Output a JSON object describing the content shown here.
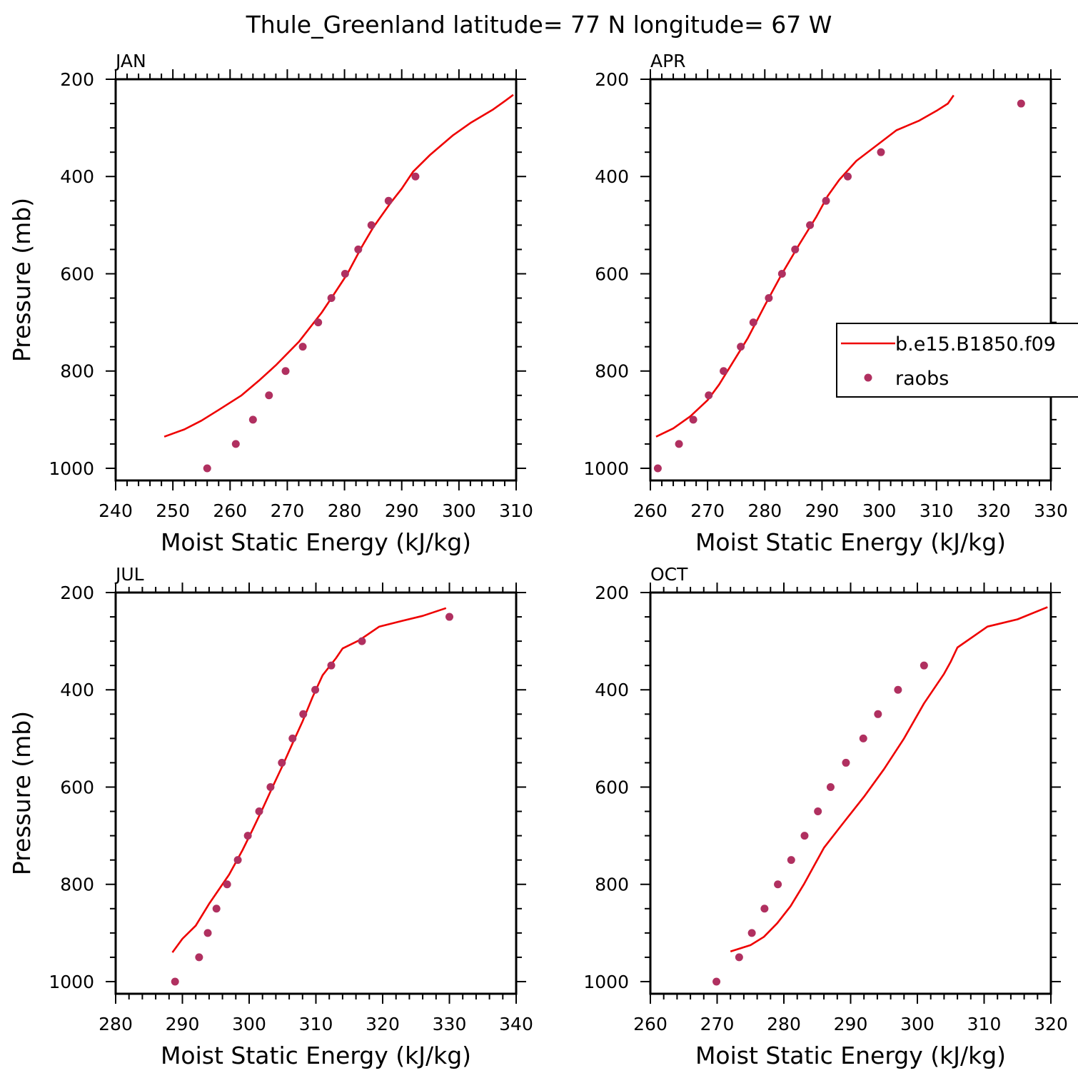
{
  "title": "Thule_Greenland  latitude= 77 N longitude= 67 W",
  "chart_data": [
    {
      "type": "line",
      "panel": "JAN",
      "xlabel": "Moist Static Energy (kJ/kg)",
      "ylabel": "Pressure (mb)",
      "xlim": [
        240,
        310
      ],
      "xticks": [
        240,
        250,
        260,
        270,
        280,
        290,
        300,
        310
      ],
      "ylim": [
        200,
        1025
      ],
      "yticks": [
        200,
        400,
        600,
        800,
        1000
      ],
      "legend": null,
      "series": [
        {
          "name": "b.e15.B1850.f09",
          "kind": "line",
          "color": "#ee0000",
          "points": [
            [
              248.5,
              935
            ],
            [
              252,
              920
            ],
            [
              255,
              902
            ],
            [
              258,
              880
            ],
            [
              262,
              850
            ],
            [
              265,
              820
            ],
            [
              268,
              788
            ],
            [
              272,
              740
            ],
            [
              276,
              680
            ],
            [
              278,
              645
            ],
            [
              280.5,
              600
            ],
            [
              283,
              545
            ],
            [
              285,
              505
            ],
            [
              288,
              455
            ],
            [
              290,
              425
            ],
            [
              292,
              390
            ],
            [
              295,
              355
            ],
            [
              299,
              315
            ],
            [
              302,
              290
            ],
            [
              306,
              262
            ],
            [
              308,
              245
            ],
            [
              309.5,
              232
            ]
          ]
        },
        {
          "name": "raobs",
          "kind": "scatter",
          "color": "#b03060",
          "points": [
            [
              256,
              1000
            ],
            [
              261,
              950
            ],
            [
              264,
              900
            ],
            [
              266.8,
              850
            ],
            [
              269.7,
              800
            ],
            [
              272.7,
              750
            ],
            [
              275.4,
              700
            ],
            [
              277.7,
              650
            ],
            [
              280.1,
              600
            ],
            [
              282.4,
              550
            ],
            [
              284.7,
              500
            ],
            [
              287.7,
              450
            ],
            [
              292.4,
              400
            ]
          ]
        }
      ]
    },
    {
      "type": "line",
      "panel": "APR",
      "xlabel": "Moist Static Energy (kJ/kg)",
      "ylabel": "",
      "xlim": [
        260,
        330
      ],
      "xticks": [
        260,
        270,
        280,
        290,
        300,
        310,
        320,
        330
      ],
      "ylim": [
        200,
        1025
      ],
      "yticks": [
        200,
        400,
        600,
        800,
        1000
      ],
      "legend": {
        "position": "right"
      },
      "series": [
        {
          "name": "b.e15.B1850.f09",
          "kind": "line",
          "color": "#ee0000",
          "points": [
            [
              261,
              935
            ],
            [
              264,
              918
            ],
            [
              267,
              893
            ],
            [
              270,
              860
            ],
            [
              272,
              828
            ],
            [
              274,
              790
            ],
            [
              277,
              733
            ],
            [
              280,
              665
            ],
            [
              283,
              600
            ],
            [
              286,
              540
            ],
            [
              289,
              483
            ],
            [
              291,
              440
            ],
            [
              293,
              407
            ],
            [
              296,
              368
            ],
            [
              300,
              332
            ],
            [
              303,
              305
            ],
            [
              307,
              285
            ],
            [
              310,
              265
            ],
            [
              312,
              250
            ],
            [
              313,
              233
            ]
          ]
        },
        {
          "name": "raobs",
          "kind": "scatter",
          "color": "#b03060",
          "points": [
            [
              261.3,
              1000
            ],
            [
              265,
              950
            ],
            [
              267.5,
              900
            ],
            [
              270.2,
              850
            ],
            [
              272.8,
              800
            ],
            [
              275.8,
              750
            ],
            [
              278,
              700
            ],
            [
              280.7,
              650
            ],
            [
              283,
              600
            ],
            [
              285.3,
              550
            ],
            [
              287.9,
              500
            ],
            [
              290.7,
              450
            ],
            [
              294.5,
              400
            ],
            [
              300.3,
              350
            ],
            [
              324.8,
              250
            ]
          ]
        }
      ]
    },
    {
      "type": "line",
      "panel": "JUL",
      "xlabel": "Moist Static Energy (kJ/kg)",
      "ylabel": "Pressure (mb)",
      "xlim": [
        280,
        340
      ],
      "xticks": [
        280,
        290,
        300,
        310,
        320,
        330,
        340
      ],
      "ylim": [
        200,
        1025
      ],
      "yticks": [
        200,
        400,
        600,
        800,
        1000
      ],
      "legend": null,
      "series": [
        {
          "name": "b.e15.B1850.f09",
          "kind": "line",
          "color": "#ee0000",
          "points": [
            [
              288.5,
              940
            ],
            [
              290,
              912
            ],
            [
              292,
              885
            ],
            [
              294,
              840
            ],
            [
              297,
              780
            ],
            [
              299,
              730
            ],
            [
              300.5,
              688
            ],
            [
              302,
              645
            ],
            [
              303.5,
              600
            ],
            [
              305,
              556
            ],
            [
              306.5,
              510
            ],
            [
              308,
              465
            ],
            [
              309.5,
              415
            ],
            [
              311,
              370
            ],
            [
              313,
              335
            ],
            [
              314,
              315
            ],
            [
              316.5,
              298
            ],
            [
              319.5,
              270
            ],
            [
              323,
              258
            ],
            [
              326,
              248
            ],
            [
              329.5,
              232
            ]
          ]
        },
        {
          "name": "raobs",
          "kind": "scatter",
          "color": "#b03060",
          "points": [
            [
              288.9,
              1000
            ],
            [
              292.5,
              950
            ],
            [
              293.8,
              900
            ],
            [
              295.1,
              850
            ],
            [
              296.7,
              800
            ],
            [
              298.3,
              750
            ],
            [
              299.8,
              700
            ],
            [
              301.5,
              650
            ],
            [
              303.2,
              600
            ],
            [
              304.9,
              550
            ],
            [
              306.5,
              500
            ],
            [
              308.1,
              450
            ],
            [
              309.9,
              400
            ],
            [
              312.3,
              350
            ],
            [
              316.9,
              300
            ],
            [
              330,
              250
            ]
          ]
        }
      ]
    },
    {
      "type": "line",
      "panel": "OCT",
      "xlabel": "Moist Static Energy (kJ/kg)",
      "ylabel": "",
      "xlim": [
        260,
        320
      ],
      "xticks": [
        260,
        270,
        280,
        290,
        300,
        310,
        320
      ],
      "ylim": [
        200,
        1025
      ],
      "yticks": [
        200,
        400,
        600,
        800,
        1000
      ],
      "legend": null,
      "series": [
        {
          "name": "b.e15.B1850.f09",
          "kind": "line",
          "color": "#ee0000",
          "points": [
            [
              272,
              938
            ],
            [
              275,
              925
            ],
            [
              277,
              908
            ],
            [
              279,
              880
            ],
            [
              281,
              845
            ],
            [
              283,
              800
            ],
            [
              286,
              725
            ],
            [
              289,
              672
            ],
            [
              292,
              620
            ],
            [
              295,
              563
            ],
            [
              298,
              500
            ],
            [
              301,
              428
            ],
            [
              304,
              367
            ],
            [
              305,
              342
            ],
            [
              306,
              313
            ],
            [
              310.5,
              270
            ],
            [
              315,
              255
            ],
            [
              319.5,
              230
            ]
          ]
        },
        {
          "name": "raobs",
          "kind": "scatter",
          "color": "#b03060",
          "points": [
            [
              269.9,
              1000
            ],
            [
              273.3,
              950
            ],
            [
              275.2,
              900
            ],
            [
              277.1,
              850
            ],
            [
              279.1,
              800
            ],
            [
              281.1,
              750
            ],
            [
              283.1,
              700
            ],
            [
              285.1,
              650
            ],
            [
              287,
              600
            ],
            [
              289.3,
              550
            ],
            [
              291.9,
              500
            ],
            [
              294.1,
              450
            ],
            [
              297.1,
              400
            ],
            [
              301,
              350
            ]
          ]
        }
      ]
    }
  ]
}
